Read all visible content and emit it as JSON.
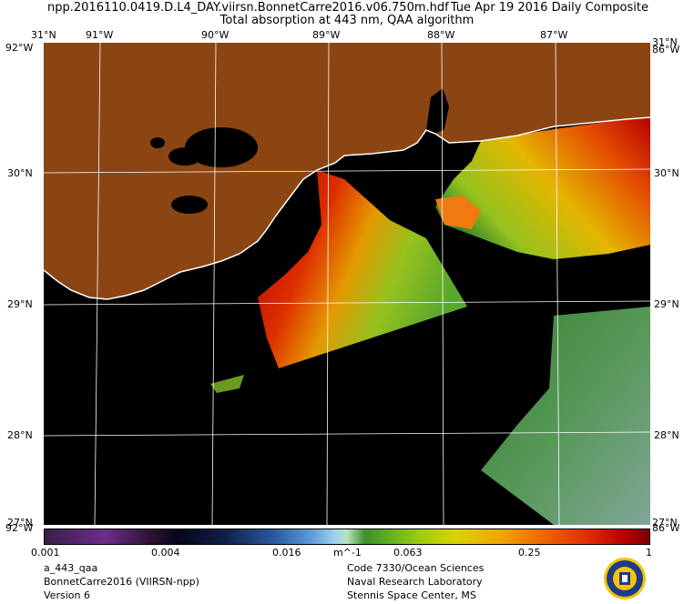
{
  "header": {
    "file": "npp.2016110.0419.D.L4_DAY.viirsn.BonnetCarre2016.v06.750m.hdf",
    "date": "Tue Apr 19 2016 Daily Composite",
    "product": "Total absorption at 443 nm, QAA algorithm"
  },
  "map": {
    "lon_labels": [
      "91°W",
      "90°W",
      "89°W",
      "88°W",
      "87°W"
    ],
    "lat_labels": [
      "30°N",
      "29°N",
      "28°N"
    ],
    "corner_top_left": "31°N",
    "corner_top_left_lon": "92°W",
    "corner_top_right": "31°N",
    "corner_top_right_lon": "86°W",
    "corner_bottom_left": "27°N",
    "corner_bottom_left_lon": "92°W",
    "corner_bottom_right": "27°N",
    "corner_bottom_right_lon": "86°W",
    "land_color": "#8b4513",
    "no_data_color": "#000000",
    "graticule_color": "#ffffff"
  },
  "colorbar": {
    "ticks": [
      "0.001",
      "0.004",
      "0.016",
      "m^-1",
      "0.063",
      "0.25",
      "1"
    ]
  },
  "footer": {
    "left": [
      "a_443_qaa",
      "BonnetCarre2016 (VIIRSN-npp)",
      "Version 6"
    ],
    "right": [
      "Code 7330/Ocean Sciences",
      "Naval Research Laboratory",
      "Stennis Space Center, MS"
    ]
  },
  "logo": {
    "name": "nrl-seal",
    "colors": [
      "#1e3a8a",
      "#f2c500"
    ]
  }
}
